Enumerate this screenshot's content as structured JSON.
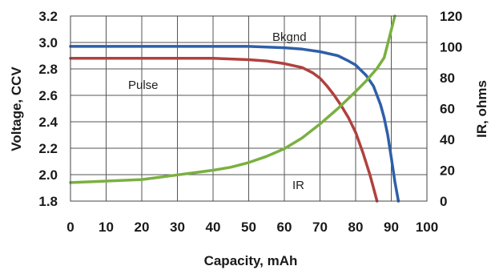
{
  "chart_data": {
    "type": "line",
    "xlabel": "Capacity, mAh",
    "ylabel_left": "Voltage, CCV",
    "ylabel_right": "IR, ohms",
    "xlim": [
      0,
      100
    ],
    "ylim_left": [
      1.8,
      3.2
    ],
    "ylim_right": [
      0,
      120
    ],
    "x_ticks": [
      "0",
      "10",
      "20",
      "30",
      "40",
      "50",
      "60",
      "70",
      "80",
      "90",
      "100"
    ],
    "y_left_ticks": [
      "1.8",
      "2.0",
      "2.2",
      "2.4",
      "2.6",
      "2.8",
      "3.0",
      "3.2"
    ],
    "y_right_ticks": [
      "0",
      "20",
      "40",
      "60",
      "80",
      "100",
      "120"
    ],
    "grid": true,
    "annotations": [
      "Bkgnd",
      "Pulse",
      "IR"
    ],
    "series": [
      {
        "name": "Bkgnd",
        "axis": "left",
        "color": "#2e5fa8",
        "x": [
          0,
          10,
          20,
          30,
          40,
          50,
          60,
          65,
          70,
          75,
          78,
          80,
          83,
          85,
          87,
          88,
          89,
          90,
          91,
          92
        ],
        "y": [
          2.97,
          2.97,
          2.97,
          2.97,
          2.97,
          2.97,
          2.96,
          2.95,
          2.93,
          2.9,
          2.86,
          2.83,
          2.75,
          2.67,
          2.53,
          2.43,
          2.3,
          2.13,
          1.95,
          1.8
        ]
      },
      {
        "name": "Pulse",
        "axis": "left",
        "color": "#b0413e",
        "x": [
          0,
          10,
          20,
          30,
          40,
          50,
          55,
          60,
          65,
          68,
          70,
          72,
          74,
          76,
          78,
          80,
          82,
          84,
          85,
          86
        ],
        "y": [
          2.88,
          2.88,
          2.88,
          2.88,
          2.88,
          2.87,
          2.86,
          2.84,
          2.81,
          2.77,
          2.73,
          2.67,
          2.6,
          2.52,
          2.43,
          2.32,
          2.17,
          2.0,
          1.9,
          1.8
        ]
      },
      {
        "name": "IR",
        "axis": "right",
        "color": "#7ab040",
        "x": [
          0,
          10,
          20,
          30,
          40,
          45,
          50,
          55,
          60,
          65,
          70,
          75,
          80,
          83,
          86,
          88,
          89,
          90,
          91
        ],
        "y": [
          12,
          13,
          14,
          17,
          20,
          22,
          25,
          29,
          34,
          41,
          50,
          60,
          71,
          78,
          86,
          93,
          102,
          111,
          120
        ]
      }
    ]
  }
}
